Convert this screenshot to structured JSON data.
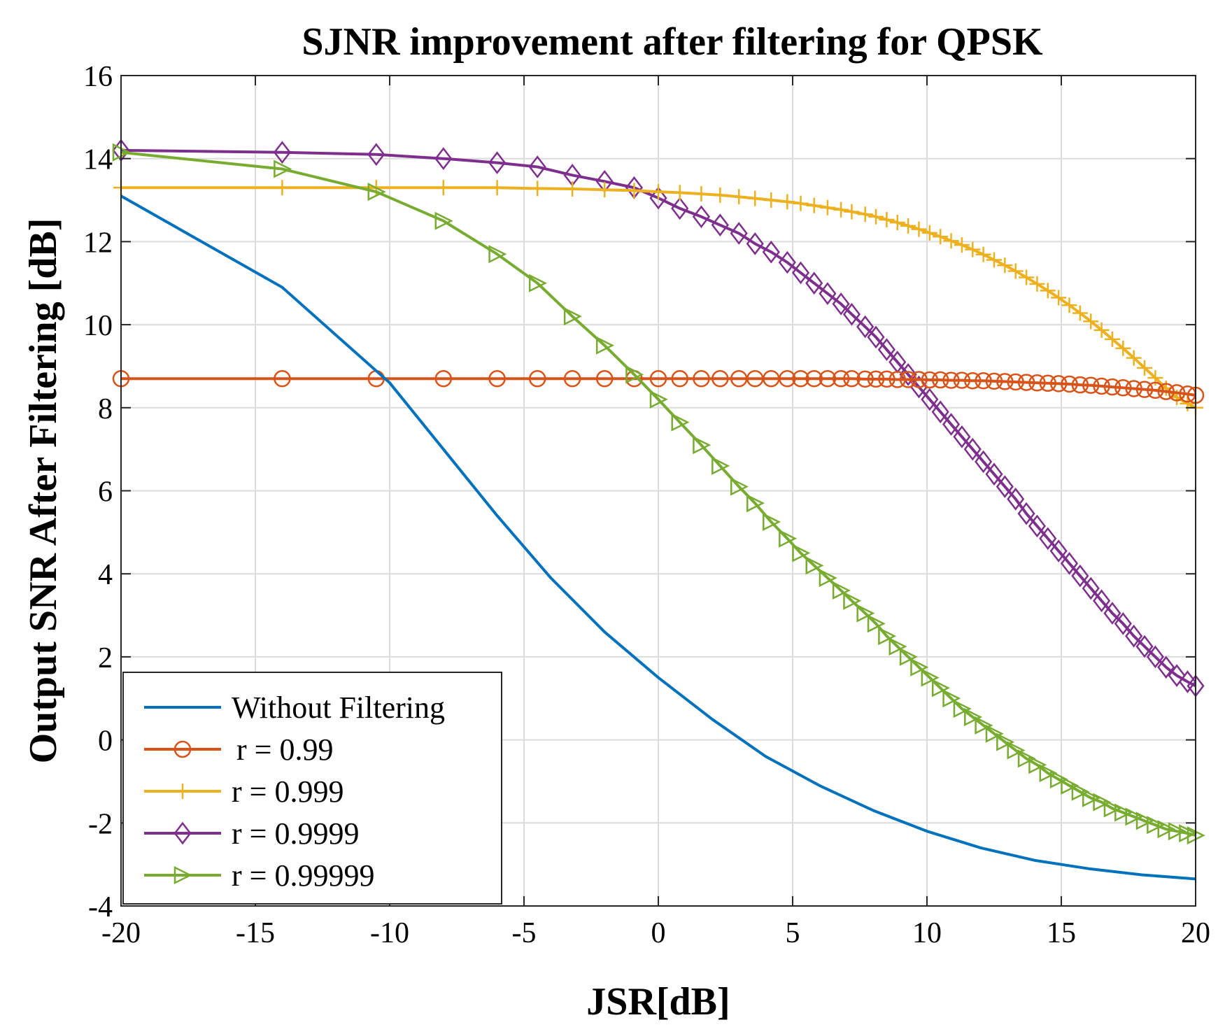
{
  "chart_data": {
    "type": "line",
    "title": "SJNR improvement after filtering for QPSK",
    "xlabel": "JSR[dB]",
    "ylabel": "Output SNR After Filtering [dB]",
    "xlim": [
      -20,
      20
    ],
    "ylim": [
      -4,
      16
    ],
    "xticks": [
      -20,
      -15,
      -10,
      -5,
      0,
      5,
      10,
      15,
      20
    ],
    "yticks": [
      -4,
      -2,
      0,
      2,
      4,
      6,
      8,
      10,
      12,
      14,
      16
    ],
    "xtick_labels": [
      "-20",
      "-15",
      "-10",
      "-5",
      "0",
      "5",
      "10",
      "15",
      "20"
    ],
    "ytick_labels": [
      "-4",
      "-2",
      "0",
      "2",
      "4",
      "6",
      "8",
      "10",
      "12",
      "14",
      "16"
    ],
    "grid": true,
    "legend_position": "bottom-left",
    "series": [
      {
        "name": "Without Filtering",
        "color": "#0072BD",
        "marker": "none",
        "x": [
          -20,
          -14,
          -10,
          -8,
          -6,
          -4,
          -2,
          0,
          2,
          4,
          6,
          8,
          10,
          12,
          14,
          16,
          18,
          20
        ],
        "y": [
          13.1,
          10.9,
          8.6,
          7.0,
          5.4,
          3.9,
          2.6,
          1.5,
          0.5,
          -0.4,
          -1.1,
          -1.7,
          -2.2,
          -2.6,
          -2.9,
          -3.1,
          -3.25,
          -3.35
        ]
      },
      {
        "name": "r = 0.99",
        "color": "#D95319",
        "marker": "circle",
        "x": [
          -20,
          -14,
          -10.5,
          -8,
          -6,
          -4.5,
          -3.2,
          -2,
          -0.9,
          0,
          0.8,
          1.6,
          2.3,
          3,
          3.6,
          4.2,
          4.8,
          5.3,
          5.8,
          6.3,
          6.8,
          7.2,
          7.7,
          8.1,
          8.5,
          8.9,
          9.3,
          9.7,
          10.1,
          10.5,
          10.9,
          11.3,
          11.7,
          12.1,
          12.5,
          12.9,
          13.3,
          13.7,
          14.1,
          14.5,
          14.9,
          15.3,
          15.7,
          16.1,
          16.5,
          16.9,
          17.3,
          17.7,
          18.1,
          18.5,
          18.9,
          19.3,
          19.7,
          20
        ],
        "y": [
          8.7,
          8.7,
          8.7,
          8.7,
          8.7,
          8.7,
          8.7,
          8.7,
          8.7,
          8.7,
          8.7,
          8.7,
          8.7,
          8.7,
          8.7,
          8.7,
          8.7,
          8.7,
          8.7,
          8.7,
          8.7,
          8.7,
          8.69,
          8.69,
          8.69,
          8.68,
          8.68,
          8.68,
          8.67,
          8.67,
          8.66,
          8.66,
          8.65,
          8.65,
          8.64,
          8.63,
          8.62,
          8.61,
          8.6,
          8.59,
          8.58,
          8.57,
          8.55,
          8.54,
          8.52,
          8.5,
          8.48,
          8.46,
          8.44,
          8.42,
          8.39,
          8.36,
          8.33,
          8.3
        ]
      },
      {
        "name": "r = 0.999",
        "color": "#EDB120",
        "marker": "plus",
        "x": [
          -20,
          -14,
          -10.5,
          -8,
          -6,
          -4.5,
          -3.2,
          -2,
          -0.9,
          0,
          0.8,
          1.6,
          2.3,
          3,
          3.6,
          4.2,
          4.8,
          5.3,
          5.8,
          6.3,
          6.8,
          7.2,
          7.7,
          8.1,
          8.5,
          8.9,
          9.3,
          9.7,
          10.1,
          10.5,
          10.9,
          11.3,
          11.7,
          12.1,
          12.5,
          12.9,
          13.3,
          13.7,
          14.1,
          14.5,
          14.9,
          15.3,
          15.7,
          16.1,
          16.5,
          16.9,
          17.3,
          17.7,
          18.1,
          18.5,
          18.9,
          19.3,
          19.7,
          20
        ],
        "y": [
          13.3,
          13.3,
          13.3,
          13.3,
          13.3,
          13.28,
          13.27,
          13.25,
          13.23,
          13.2,
          13.18,
          13.15,
          13.12,
          13.08,
          13.04,
          13.0,
          12.96,
          12.92,
          12.87,
          12.82,
          12.77,
          12.72,
          12.66,
          12.6,
          12.53,
          12.46,
          12.38,
          12.3,
          12.21,
          12.12,
          12.02,
          11.92,
          11.81,
          11.69,
          11.56,
          11.43,
          11.29,
          11.14,
          10.98,
          10.82,
          10.65,
          10.47,
          10.28,
          10.08,
          9.87,
          9.65,
          9.43,
          9.2,
          8.96,
          8.72,
          8.47,
          8.25,
          8.1,
          8.0
        ]
      },
      {
        "name": "r = 0.9999",
        "color": "#7E2F8E",
        "marker": "diamond",
        "x": [
          -20,
          -14,
          -10.5,
          -8,
          -6,
          -4.5,
          -3.2,
          -2,
          -0.9,
          0,
          0.8,
          1.6,
          2.3,
          3,
          3.6,
          4.2,
          4.8,
          5.3,
          5.8,
          6.3,
          6.8,
          7.2,
          7.7,
          8.1,
          8.5,
          8.9,
          9.3,
          9.7,
          10.1,
          10.5,
          10.9,
          11.3,
          11.7,
          12.1,
          12.5,
          12.9,
          13.3,
          13.7,
          14.1,
          14.5,
          14.9,
          15.3,
          15.7,
          16.1,
          16.5,
          16.9,
          17.3,
          17.7,
          18.1,
          18.5,
          18.9,
          19.3,
          19.7,
          20
        ],
        "y": [
          14.2,
          14.15,
          14.1,
          14.0,
          13.9,
          13.8,
          13.6,
          13.45,
          13.3,
          13.05,
          12.8,
          12.6,
          12.4,
          12.2,
          11.95,
          11.75,
          11.5,
          11.25,
          11.0,
          10.75,
          10.5,
          10.25,
          9.95,
          9.7,
          9.4,
          9.1,
          8.8,
          8.5,
          8.2,
          7.9,
          7.6,
          7.3,
          7.0,
          6.7,
          6.4,
          6.1,
          5.8,
          5.45,
          5.15,
          4.85,
          4.55,
          4.25,
          3.95,
          3.65,
          3.35,
          3.05,
          2.8,
          2.5,
          2.25,
          2.0,
          1.75,
          1.55,
          1.4,
          1.3
        ]
      },
      {
        "name": "r = 0.99999",
        "color": "#77AC30",
        "marker": "triangle-right",
        "x": [
          -20,
          -14,
          -10.5,
          -8,
          -6,
          -4.5,
          -3.2,
          -2,
          -0.9,
          0,
          0.8,
          1.6,
          2.3,
          3,
          3.6,
          4.2,
          4.8,
          5.3,
          5.8,
          6.3,
          6.8,
          7.2,
          7.7,
          8.1,
          8.5,
          8.9,
          9.3,
          9.7,
          10.1,
          10.5,
          10.9,
          11.3,
          11.7,
          12.1,
          12.5,
          12.9,
          13.3,
          13.7,
          14.1,
          14.5,
          14.9,
          15.3,
          15.7,
          16.1,
          16.5,
          16.9,
          17.3,
          17.7,
          18.1,
          18.5,
          18.9,
          19.3,
          19.7,
          20
        ],
        "y": [
          14.15,
          13.75,
          13.2,
          12.5,
          11.7,
          11.0,
          10.2,
          9.5,
          8.8,
          8.2,
          7.65,
          7.1,
          6.6,
          6.1,
          5.7,
          5.25,
          4.85,
          4.5,
          4.2,
          3.9,
          3.6,
          3.35,
          3.05,
          2.8,
          2.5,
          2.25,
          2.0,
          1.75,
          1.5,
          1.25,
          1.0,
          0.75,
          0.55,
          0.35,
          0.15,
          -0.05,
          -0.25,
          -0.45,
          -0.6,
          -0.8,
          -0.95,
          -1.1,
          -1.25,
          -1.4,
          -1.5,
          -1.65,
          -1.75,
          -1.85,
          -1.95,
          -2.05,
          -2.15,
          -2.2,
          -2.25,
          -2.3
        ]
      }
    ]
  }
}
